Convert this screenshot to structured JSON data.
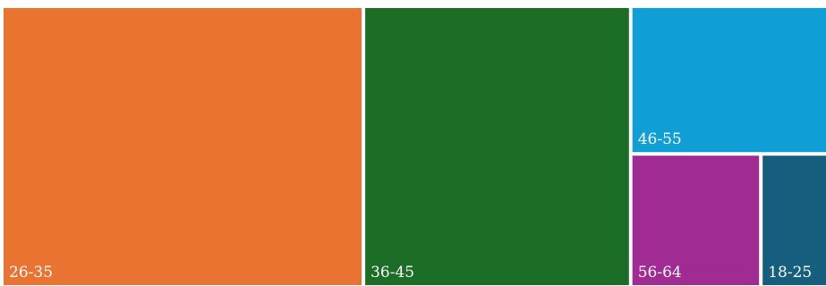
{
  "chart_data": {
    "type": "treemap",
    "title": "",
    "tiles": [
      {
        "label": "26-35",
        "value": 35,
        "color": "#e97432"
      },
      {
        "label": "36-45",
        "value": 26,
        "color": "#1c6d26"
      },
      {
        "label": "46-55",
        "value": 10,
        "color": "#0f9ed5"
      },
      {
        "label": "56-64",
        "value": 6,
        "color": "#a02b93"
      },
      {
        "label": "18-25",
        "value": 3,
        "color": "#155e7d"
      }
    ]
  }
}
